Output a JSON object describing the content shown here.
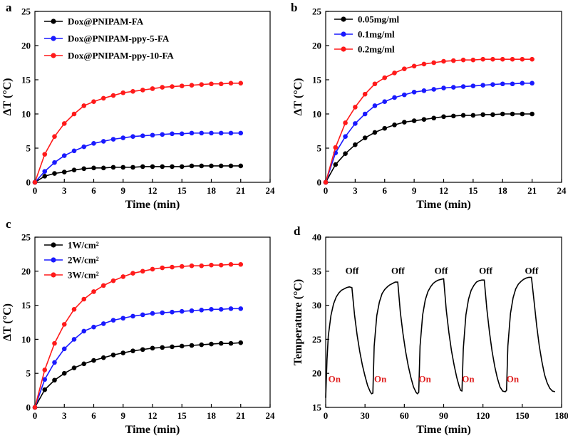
{
  "chart_data": [
    {
      "type": "line",
      "panel_label": "a",
      "xlabel": "Time (min)",
      "ylabel": "ΔT (°C)",
      "xlim": [
        0,
        24
      ],
      "ylim": [
        0,
        25
      ],
      "xticks": [
        0,
        3,
        6,
        9,
        12,
        15,
        18,
        21,
        24
      ],
      "yticks": [
        0,
        5,
        10,
        15,
        20,
        25
      ],
      "grid": false,
      "legend_position": "top-left",
      "x": [
        0,
        1,
        2,
        3,
        4,
        5,
        6,
        7,
        8,
        9,
        10,
        11,
        12,
        13,
        14,
        15,
        16,
        17,
        18,
        19,
        20,
        21
      ],
      "series": [
        {
          "name": "Dox@PNIPAM-FA",
          "color": "#000000",
          "values": [
            0,
            0.9,
            1.3,
            1.5,
            1.8,
            2.0,
            2.1,
            2.1,
            2.2,
            2.2,
            2.2,
            2.3,
            2.3,
            2.3,
            2.3,
            2.3,
            2.4,
            2.4,
            2.4,
            2.4,
            2.4,
            2.4
          ]
        },
        {
          "name": "Dox@PNIPAM-ppy-5-FA",
          "color": "#1a1aff",
          "values": [
            0,
            1.6,
            2.9,
            3.9,
            4.6,
            5.2,
            5.7,
            6.0,
            6.3,
            6.5,
            6.7,
            6.8,
            6.9,
            7.0,
            7.1,
            7.1,
            7.2,
            7.2,
            7.2,
            7.2,
            7.2,
            7.2
          ]
        },
        {
          "name": "Dox@PNIPAM-ppy-10-FA",
          "color": "#ff1a1a",
          "values": [
            0,
            4.1,
            6.7,
            8.6,
            10.0,
            11.2,
            11.8,
            12.3,
            12.7,
            13.1,
            13.3,
            13.5,
            13.7,
            13.9,
            14.0,
            14.1,
            14.2,
            14.3,
            14.4,
            14.4,
            14.5,
            14.5
          ]
        }
      ]
    },
    {
      "type": "line",
      "panel_label": "b",
      "xlabel": "Time (min)",
      "ylabel": "ΔT (°C)",
      "xlim": [
        0,
        24
      ],
      "ylim": [
        0,
        25
      ],
      "xticks": [
        0,
        3,
        6,
        9,
        12,
        15,
        18,
        21,
        24
      ],
      "yticks": [
        0,
        5,
        10,
        15,
        20,
        25
      ],
      "grid": false,
      "legend_position": "top-left",
      "x": [
        0,
        1,
        2,
        3,
        4,
        5,
        6,
        7,
        8,
        9,
        10,
        11,
        12,
        13,
        14,
        15,
        16,
        17,
        18,
        19,
        20,
        21
      ],
      "series": [
        {
          "name": "0.05mg/ml",
          "color": "#000000",
          "values": [
            0,
            2.6,
            4.2,
            5.5,
            6.5,
            7.3,
            7.9,
            8.4,
            8.8,
            9.0,
            9.2,
            9.4,
            9.6,
            9.7,
            9.8,
            9.8,
            9.9,
            9.9,
            10.0,
            10.0,
            10.0,
            10.0
          ]
        },
        {
          "name": "0.1mg/ml",
          "color": "#1a1aff",
          "values": [
            0,
            4.3,
            6.7,
            8.6,
            10.0,
            11.2,
            11.8,
            12.4,
            12.8,
            13.2,
            13.4,
            13.6,
            13.8,
            13.9,
            14.0,
            14.1,
            14.2,
            14.3,
            14.4,
            14.4,
            14.5,
            14.5
          ]
        },
        {
          "name": "0.2mg/ml",
          "color": "#ff1a1a",
          "values": [
            0,
            5.1,
            8.7,
            11.0,
            12.9,
            14.4,
            15.3,
            16.0,
            16.6,
            17.0,
            17.3,
            17.5,
            17.7,
            17.8,
            17.9,
            17.9,
            18.0,
            18.0,
            18.0,
            18.0,
            18.0,
            18.0
          ]
        }
      ]
    },
    {
      "type": "line",
      "panel_label": "c",
      "xlabel": "Time (min)",
      "ylabel": "ΔT (°C)",
      "xlim": [
        0,
        24
      ],
      "ylim": [
        0,
        25
      ],
      "xticks": [
        0,
        3,
        6,
        9,
        12,
        15,
        18,
        21,
        24
      ],
      "yticks": [
        0,
        5,
        10,
        15,
        20,
        25
      ],
      "grid": false,
      "legend_position": "top-left",
      "x": [
        0,
        1,
        2,
        3,
        4,
        5,
        6,
        7,
        8,
        9,
        10,
        11,
        12,
        13,
        14,
        15,
        16,
        17,
        18,
        19,
        20,
        21
      ],
      "series": [
        {
          "name": "1W/cm²",
          "color": "#000000",
          "values": [
            0,
            2.6,
            4.0,
            5.0,
            5.8,
            6.4,
            6.9,
            7.3,
            7.7,
            8.0,
            8.3,
            8.5,
            8.7,
            8.8,
            8.9,
            9.0,
            9.1,
            9.2,
            9.3,
            9.4,
            9.4,
            9.5
          ]
        },
        {
          "name": "2W/cm²",
          "color": "#1a1aff",
          "values": [
            0,
            4.1,
            6.6,
            8.6,
            10.0,
            11.2,
            11.8,
            12.3,
            12.8,
            13.1,
            13.4,
            13.6,
            13.8,
            13.9,
            14.0,
            14.1,
            14.2,
            14.3,
            14.4,
            14.4,
            14.5,
            14.5
          ]
        },
        {
          "name": "3W/cm²",
          "color": "#ff1a1a",
          "values": [
            0,
            5.5,
            9.4,
            12.2,
            14.4,
            15.9,
            17.0,
            17.9,
            18.6,
            19.2,
            19.7,
            20.0,
            20.3,
            20.5,
            20.6,
            20.7,
            20.8,
            20.8,
            20.9,
            20.9,
            21.0,
            21.0
          ]
        }
      ]
    },
    {
      "type": "line",
      "panel_label": "d",
      "xlabel": "Time (min)",
      "ylabel": "Temperature (°C)",
      "xlim": [
        0,
        180
      ],
      "ylim": [
        15,
        40
      ],
      "xticks": [
        0,
        30,
        60,
        90,
        120,
        150,
        180
      ],
      "yticks": [
        15,
        20,
        25,
        30,
        35,
        40
      ],
      "grid": false,
      "series": [
        {
          "name": "",
          "color": "#000000",
          "x": [
            0,
            1,
            2,
            4,
            6,
            8,
            10,
            12,
            14,
            16,
            18,
            20,
            22,
            24,
            26,
            28,
            30,
            32,
            34,
            35,
            36,
            37,
            39,
            41,
            43,
            45,
            47,
            49,
            51,
            53,
            55,
            57,
            59,
            61,
            63,
            65,
            67,
            69,
            70,
            71,
            72,
            74,
            76,
            78,
            80,
            82,
            84,
            86,
            88,
            90,
            92,
            94,
            96,
            98,
            100,
            102,
            103,
            104,
            105,
            107,
            109,
            111,
            113,
            115,
            117,
            119,
            121,
            123,
            125,
            127,
            129,
            131,
            133,
            135,
            137,
            138,
            139,
            141,
            143,
            145,
            147,
            149,
            151,
            153,
            155,
            157,
            159,
            161,
            163,
            165,
            167,
            169,
            171,
            173,
            175
          ],
          "values": [
            16.4,
            22,
            25.5,
            28.5,
            30.2,
            31.2,
            31.8,
            32.2,
            32.4,
            32.6,
            32.7,
            32.6,
            28.6,
            25.6,
            23.2,
            21.2,
            19.6,
            18.2,
            17.3,
            17.0,
            17.1,
            24,
            28.5,
            30.5,
            31.7,
            32.3,
            32.7,
            33.0,
            33.2,
            33.4,
            33.4,
            28.9,
            25.8,
            23.2,
            21.1,
            19.4,
            18.0,
            17.2,
            17.0,
            17.2,
            24,
            28.6,
            30.8,
            32.0,
            32.7,
            33.2,
            33.5,
            33.7,
            33.8,
            33.9,
            29.3,
            26.0,
            23.3,
            21.2,
            19.4,
            18.0,
            17.5,
            17.4,
            23.6,
            28.6,
            30.9,
            32.2,
            32.9,
            33.4,
            33.6,
            33.7,
            33.7,
            29.4,
            26.0,
            23.2,
            21.0,
            19.3,
            18.0,
            17.4,
            17.3,
            17.5,
            24,
            28.8,
            31.1,
            32.4,
            33.1,
            33.5,
            33.8,
            34.0,
            34.1,
            34.1,
            30.6,
            27.0,
            24.0,
            21.7,
            19.8,
            18.6,
            17.8,
            17.4,
            17.3
          ]
        }
      ],
      "annotations": [
        {
          "text": "On",
          "x": 2,
          "y": 18.7,
          "color": "#e02020"
        },
        {
          "text": "On",
          "x": 37,
          "y": 18.7,
          "color": "#e02020"
        },
        {
          "text": "On",
          "x": 71,
          "y": 18.7,
          "color": "#e02020"
        },
        {
          "text": "On",
          "x": 104,
          "y": 18.7,
          "color": "#e02020"
        },
        {
          "text": "On",
          "x": 138,
          "y": 18.7,
          "color": "#e02020"
        },
        {
          "text": "Off",
          "x": 15,
          "y": 34.6,
          "color": "#000000"
        },
        {
          "text": "Off",
          "x": 50,
          "y": 34.6,
          "color": "#000000"
        },
        {
          "text": "Off",
          "x": 83,
          "y": 34.6,
          "color": "#000000"
        },
        {
          "text": "Off",
          "x": 117,
          "y": 34.6,
          "color": "#000000"
        },
        {
          "text": "Off",
          "x": 152,
          "y": 34.6,
          "color": "#000000"
        }
      ]
    }
  ]
}
